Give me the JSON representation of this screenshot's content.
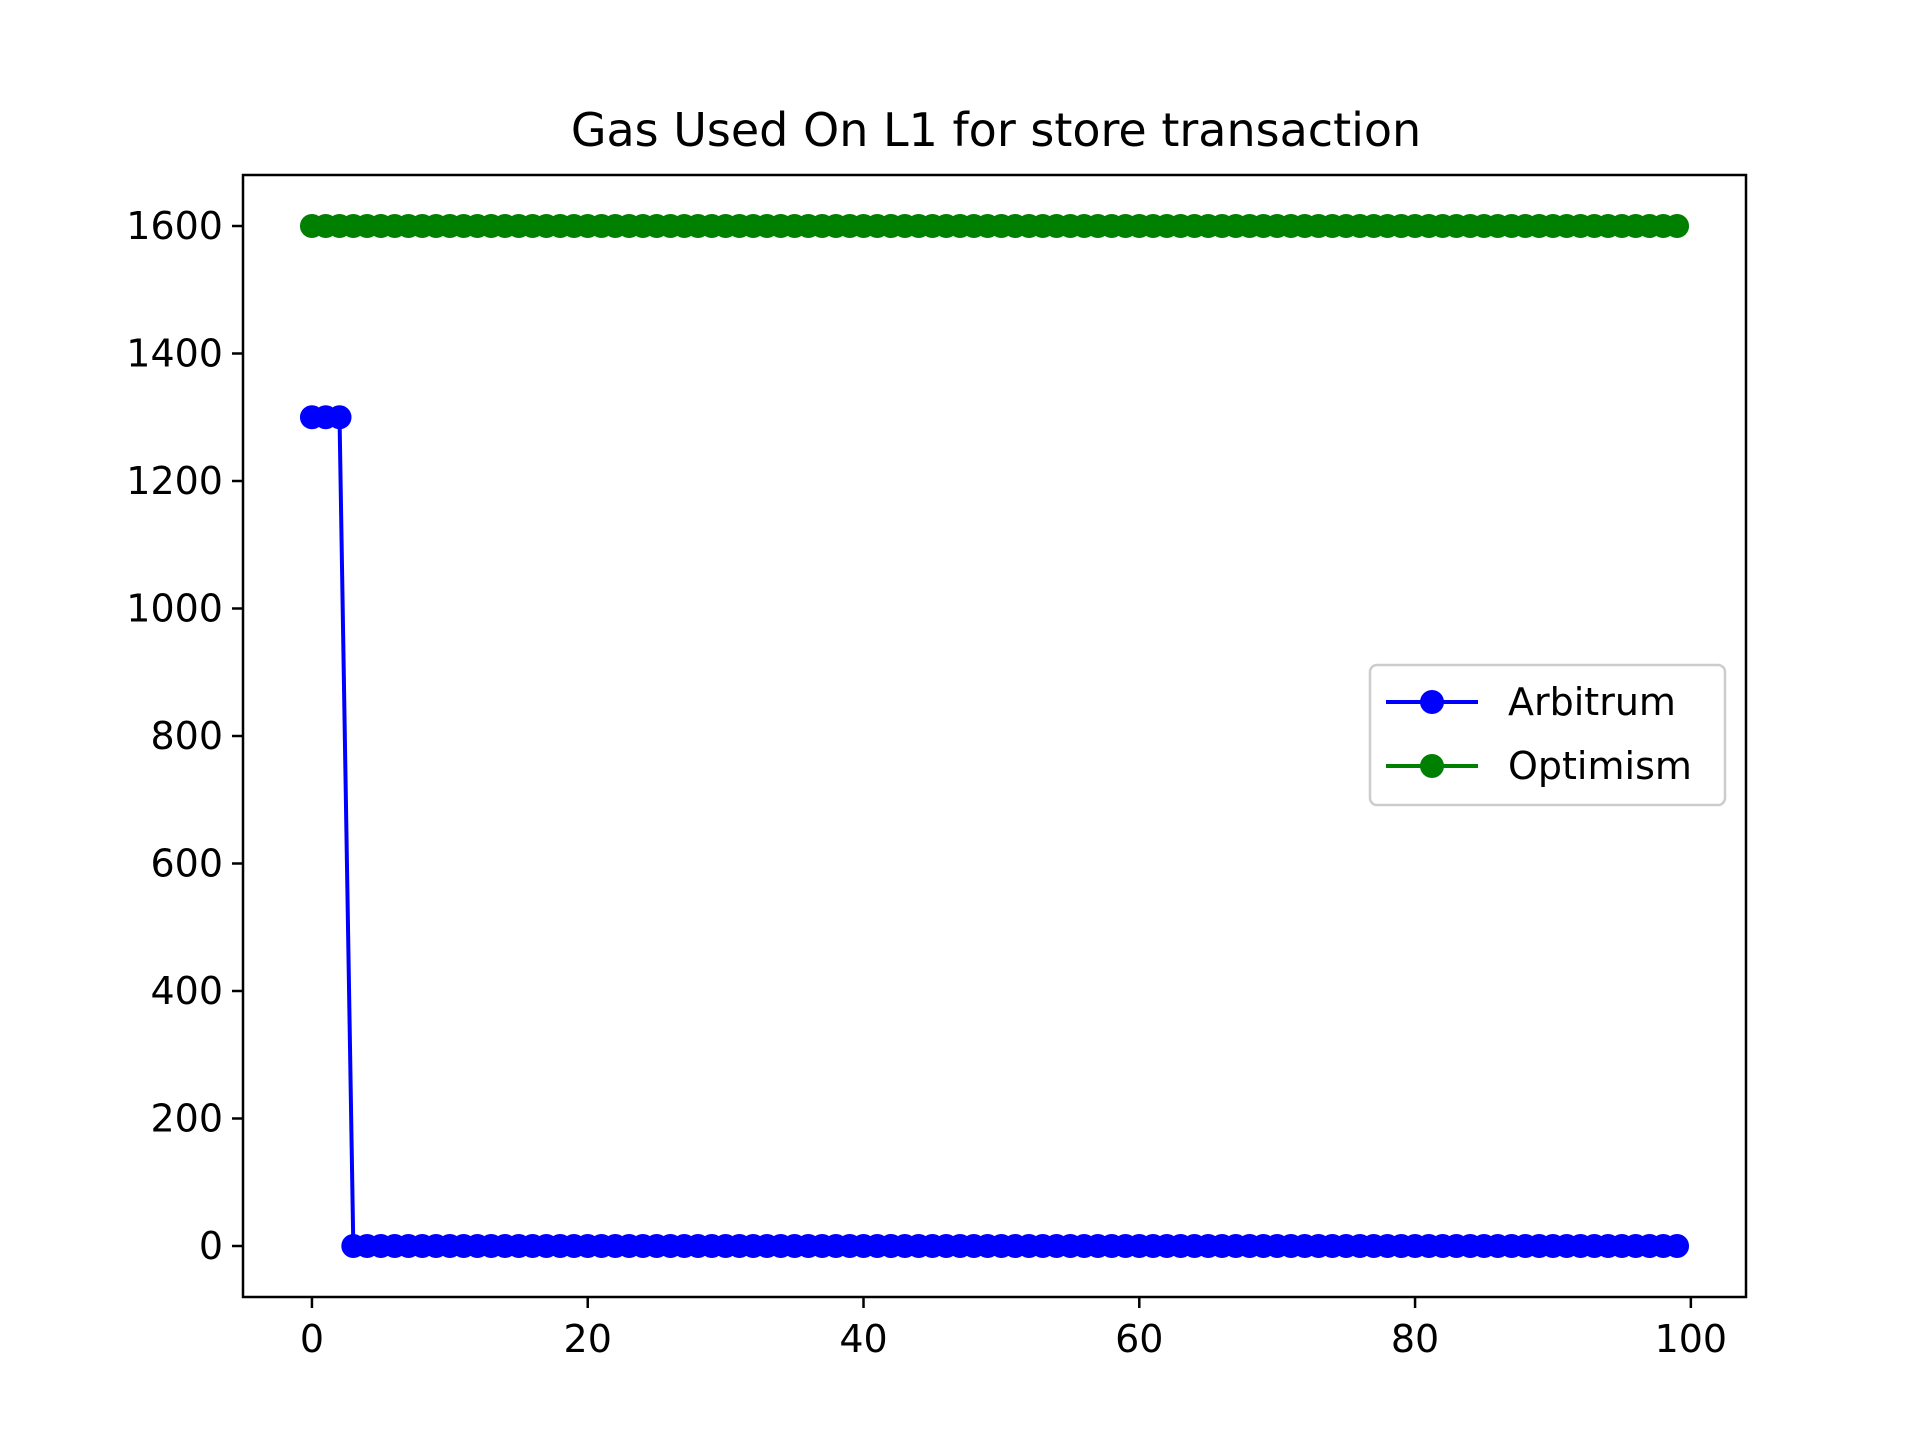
{
  "chart_data": {
    "type": "line",
    "title": "Gas Used On L1 for store transaction",
    "xlabel": "",
    "ylabel": "",
    "xlim": [
      -5,
      104
    ],
    "ylim": [
      -80,
      1680
    ],
    "x_ticks": [
      0,
      20,
      40,
      60,
      80,
      100
    ],
    "y_ticks": [
      0,
      200,
      400,
      600,
      800,
      1000,
      1200,
      1400,
      1600
    ],
    "grid": false,
    "legend_position": "center-right",
    "x": [
      0,
      1,
      2,
      3,
      4,
      5,
      6,
      7,
      8,
      9,
      10,
      11,
      12,
      13,
      14,
      15,
      16,
      17,
      18,
      19,
      20,
      21,
      22,
      23,
      24,
      25,
      26,
      27,
      28,
      29,
      30,
      31,
      32,
      33,
      34,
      35,
      36,
      37,
      38,
      39,
      40,
      41,
      42,
      43,
      44,
      45,
      46,
      47,
      48,
      49,
      50,
      51,
      52,
      53,
      54,
      55,
      56,
      57,
      58,
      59,
      60,
      61,
      62,
      63,
      64,
      65,
      66,
      67,
      68,
      69,
      70,
      71,
      72,
      73,
      74,
      75,
      76,
      77,
      78,
      79,
      80,
      81,
      82,
      83,
      84,
      85,
      86,
      87,
      88,
      89,
      90,
      91,
      92,
      93,
      94,
      95,
      96,
      97,
      98,
      99
    ],
    "series": [
      {
        "name": "Arbitrum",
        "color": "#0000ff",
        "values": [
          1300,
          1300,
          1300,
          0,
          0,
          0,
          0,
          0,
          0,
          0,
          0,
          0,
          0,
          0,
          0,
          0,
          0,
          0,
          0,
          0,
          0,
          0,
          0,
          0,
          0,
          0,
          0,
          0,
          0,
          0,
          0,
          0,
          0,
          0,
          0,
          0,
          0,
          0,
          0,
          0,
          0,
          0,
          0,
          0,
          0,
          0,
          0,
          0,
          0,
          0,
          0,
          0,
          0,
          0,
          0,
          0,
          0,
          0,
          0,
          0,
          0,
          0,
          0,
          0,
          0,
          0,
          0,
          0,
          0,
          0,
          0,
          0,
          0,
          0,
          0,
          0,
          0,
          0,
          0,
          0,
          0,
          0,
          0,
          0,
          0,
          0,
          0,
          0,
          0,
          0,
          0,
          0,
          0,
          0,
          0,
          0,
          0,
          0,
          0,
          0
        ]
      },
      {
        "name": "Optimism",
        "color": "#008000",
        "values": [
          1600,
          1600,
          1600,
          1600,
          1600,
          1600,
          1600,
          1600,
          1600,
          1600,
          1600,
          1600,
          1600,
          1600,
          1600,
          1600,
          1600,
          1600,
          1600,
          1600,
          1600,
          1600,
          1600,
          1600,
          1600,
          1600,
          1600,
          1600,
          1600,
          1600,
          1600,
          1600,
          1600,
          1600,
          1600,
          1600,
          1600,
          1600,
          1600,
          1600,
          1600,
          1600,
          1600,
          1600,
          1600,
          1600,
          1600,
          1600,
          1600,
          1600,
          1600,
          1600,
          1600,
          1600,
          1600,
          1600,
          1600,
          1600,
          1600,
          1600,
          1600,
          1600,
          1600,
          1600,
          1600,
          1600,
          1600,
          1600,
          1600,
          1600,
          1600,
          1600,
          1600,
          1600,
          1600,
          1600,
          1600,
          1600,
          1600,
          1600,
          1600,
          1600,
          1600,
          1600,
          1600,
          1600,
          1600,
          1600,
          1600,
          1600,
          1600,
          1600,
          1600,
          1600,
          1600,
          1600,
          1600,
          1600,
          1600,
          1600
        ]
      }
    ]
  }
}
